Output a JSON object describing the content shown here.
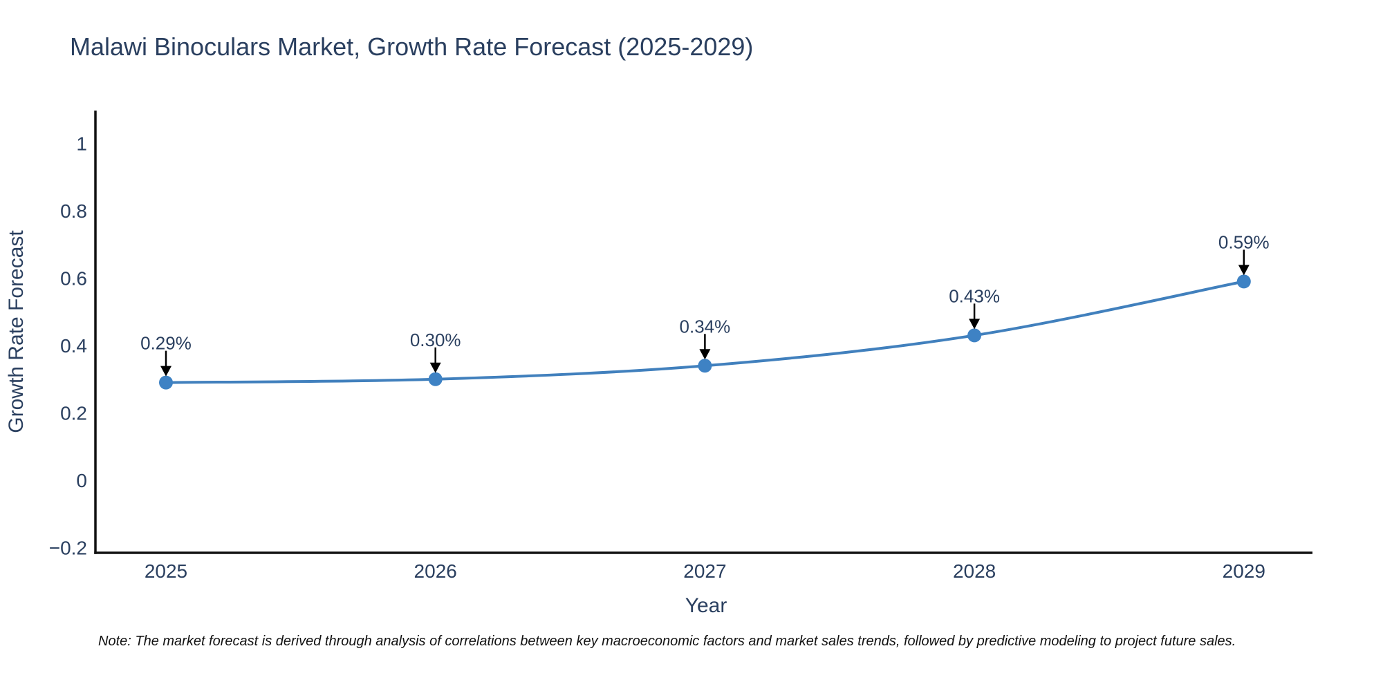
{
  "header": {
    "title": "Malawi Binoculars Market, Growth Rate Forecast (2025-2029)"
  },
  "footer": {
    "note": "Note: The market forecast is derived through analysis of correlations between key macroeconomic factors and market sales trends, followed by predictive modeling to project future sales."
  },
  "colors": {
    "line": "#4180bd",
    "marker": "#3e82c4",
    "axis": "#111111",
    "text": "#2a3f5f",
    "annotation_text": "#2a3f5f",
    "arrow": "#000000",
    "background": "#ffffff"
  },
  "chart_data": {
    "type": "line",
    "title": "Malawi Binoculars Market, Growth Rate Forecast (2025-2029)",
    "xlabel": "Year",
    "ylabel": "Growth Rate Forecast",
    "categories": [
      "2025",
      "2026",
      "2027",
      "2028",
      "2029"
    ],
    "series": [
      {
        "name": "Growth Rate Forecast",
        "values": [
          0.29,
          0.3,
          0.34,
          0.43,
          0.59
        ]
      }
    ],
    "point_labels": [
      "0.29%",
      "0.30%",
      "0.34%",
      "0.43%",
      "0.59%"
    ],
    "ytick_labels": [
      "1",
      "0.8",
      "0.6",
      "0.4",
      "0.2",
      "0",
      "−0.2"
    ],
    "ylim": [
      -0.215,
      1.1
    ],
    "line_shape": "spline",
    "grid": false,
    "legend_position": "none",
    "annotations": "value labels with downward arrows above each point"
  }
}
